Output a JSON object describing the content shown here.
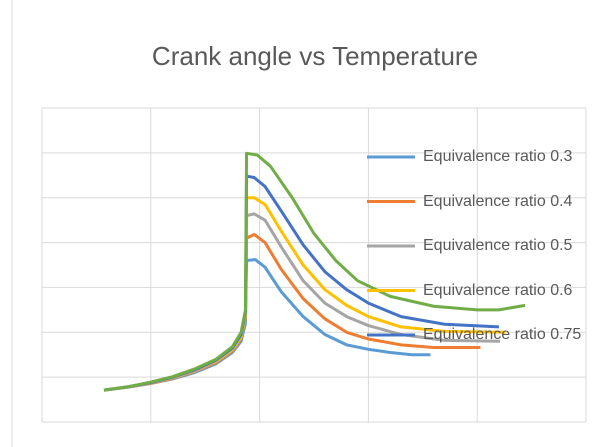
{
  "chart_data": {
    "type": "line",
    "title": "Crank angle vs Temperature",
    "xlim": [
      0,
      5
    ],
    "ylim": [
      0,
      7
    ],
    "xticks": [
      0,
      1,
      2,
      3,
      4,
      5
    ],
    "yticks": [
      0,
      1,
      2,
      3,
      4,
      5,
      6,
      7
    ],
    "grid": true,
    "tick_labels": false,
    "legend": "right",
    "series": [
      {
        "name": "Equivalence ratio 0.3",
        "color": "#5b9bd5",
        "x": [
          0.57,
          0.8,
          1.0,
          1.2,
          1.4,
          1.6,
          1.75,
          1.83,
          1.87,
          1.88,
          1.96,
          2.05,
          2.2,
          2.4,
          2.6,
          2.8,
          3.0,
          3.2,
          3.4,
          3.57
        ],
        "values": [
          0.71,
          0.78,
          0.86,
          0.96,
          1.1,
          1.3,
          1.55,
          1.8,
          2.2,
          3.6,
          3.62,
          3.45,
          2.9,
          2.35,
          1.95,
          1.72,
          1.62,
          1.55,
          1.5,
          1.5
        ]
      },
      {
        "name": "Equivalence ratio 0.4",
        "color": "#ed7d31",
        "x": [
          0.57,
          0.8,
          1.0,
          1.2,
          1.4,
          1.6,
          1.75,
          1.83,
          1.87,
          1.88,
          1.95,
          2.05,
          2.2,
          2.4,
          2.6,
          2.8,
          3.0,
          3.3,
          3.6,
          4.03
        ],
        "values": [
          0.71,
          0.78,
          0.86,
          0.97,
          1.12,
          1.32,
          1.58,
          1.85,
          2.3,
          4.1,
          4.18,
          4.0,
          3.4,
          2.75,
          2.3,
          2.0,
          1.85,
          1.72,
          1.66,
          1.66
        ]
      },
      {
        "name": "Equivalence ratio 0.5",
        "color": "#a5a5a5",
        "x": [
          0.57,
          0.8,
          1.0,
          1.2,
          1.4,
          1.6,
          1.75,
          1.83,
          1.87,
          1.88,
          1.95,
          2.05,
          2.2,
          2.4,
          2.6,
          2.8,
          3.0,
          3.3,
          3.7,
          4.21
        ],
        "values": [
          0.71,
          0.78,
          0.87,
          0.98,
          1.13,
          1.34,
          1.6,
          1.88,
          2.35,
          4.6,
          4.64,
          4.5,
          3.9,
          3.15,
          2.65,
          2.35,
          2.15,
          1.95,
          1.82,
          1.8
        ]
      },
      {
        "name": "Equivalence ratio 0.6",
        "color": "#ffc000",
        "x": [
          0.57,
          0.8,
          1.0,
          1.2,
          1.4,
          1.6,
          1.75,
          1.83,
          1.87,
          1.88,
          1.95,
          2.05,
          2.2,
          2.4,
          2.6,
          2.8,
          3.0,
          3.3,
          3.7,
          4.26
        ],
        "values": [
          0.71,
          0.79,
          0.88,
          0.99,
          1.15,
          1.36,
          1.62,
          1.9,
          2.4,
          5.0,
          5.0,
          4.85,
          4.25,
          3.5,
          2.95,
          2.6,
          2.35,
          2.12,
          2.02,
          2.0
        ]
      },
      {
        "name": "Equivalence ratio 0.75",
        "color": "#4472c4",
        "x": [
          0.57,
          0.8,
          1.0,
          1.2,
          1.4,
          1.6,
          1.75,
          1.83,
          1.87,
          1.88,
          1.95,
          2.05,
          2.2,
          2.4,
          2.6,
          2.8,
          3.0,
          3.3,
          3.7,
          4.2
        ],
        "values": [
          0.71,
          0.79,
          0.88,
          1.0,
          1.16,
          1.38,
          1.65,
          1.95,
          2.45,
          5.48,
          5.45,
          5.25,
          4.7,
          3.95,
          3.35,
          2.95,
          2.65,
          2.35,
          2.18,
          2.12
        ]
      },
      {
        "color": "#70ad47",
        "x": [
          0.57,
          0.8,
          1.0,
          1.2,
          1.4,
          1.6,
          1.75,
          1.83,
          1.87,
          1.88,
          1.98,
          2.1,
          2.3,
          2.5,
          2.7,
          2.9,
          3.2,
          3.6,
          4.0,
          4.2,
          4.44
        ],
        "values": [
          0.71,
          0.79,
          0.89,
          1.01,
          1.18,
          1.4,
          1.68,
          2.0,
          2.5,
          5.99,
          5.95,
          5.7,
          5.0,
          4.2,
          3.6,
          3.15,
          2.8,
          2.58,
          2.5,
          2.5,
          2.6
        ]
      }
    ]
  }
}
